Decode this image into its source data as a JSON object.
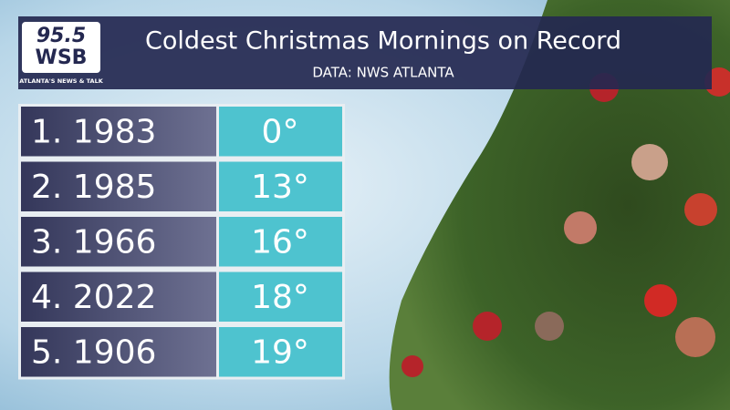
{
  "logo": {
    "number": "95.5",
    "name": "WSB",
    "tagline": "ATLANTA'S NEWS & TALK"
  },
  "header": {
    "title": "Coldest Christmas Mornings on Record",
    "subtitle": "DATA: NWS ATLANTA"
  },
  "table": {
    "rows": [
      [
        "1. 1983",
        "0°"
      ],
      [
        "2. 1985",
        "13°"
      ],
      [
        "3. 1966",
        "16°"
      ],
      [
        "4. 2022",
        "18°"
      ],
      [
        "5. 1906",
        "19°"
      ]
    ]
  }
}
